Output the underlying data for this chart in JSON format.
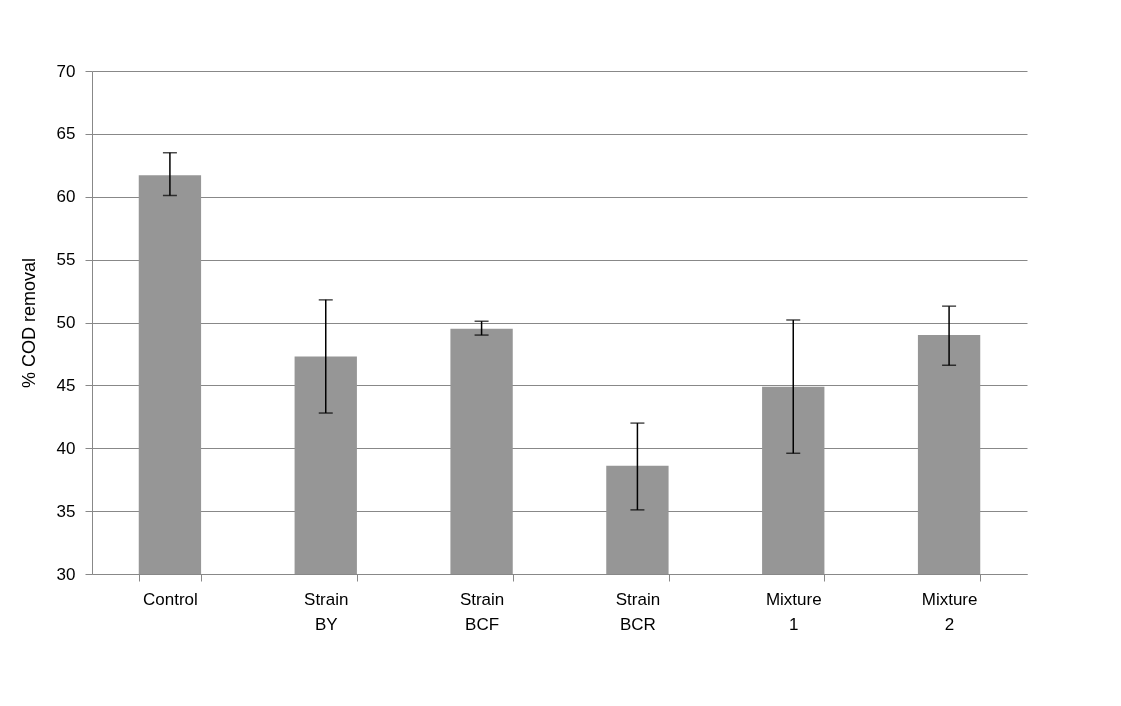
{
  "chart_data": {
    "type": "bar",
    "ylabel": "% COD removal",
    "categories": [
      "Control",
      "Strain BY",
      "Strain BCF",
      "Strain BCR",
      "Mixture 1",
      "Mixture 2"
    ],
    "values": [
      61.7,
      47.3,
      49.5,
      38.6,
      44.9,
      49.0
    ],
    "errors": [
      [
        60.1,
        63.5
      ],
      [
        42.8,
        51.8
      ],
      [
        49.0,
        50.1
      ],
      [
        35.1,
        42.0
      ],
      [
        39.6,
        50.2
      ],
      [
        46.6,
        51.3
      ]
    ],
    "color": "#969696",
    "ylim": [
      30,
      70
    ],
    "yticks": [
      30,
      35,
      40,
      45,
      50,
      55,
      60,
      65,
      70
    ],
    "grid": "y"
  }
}
